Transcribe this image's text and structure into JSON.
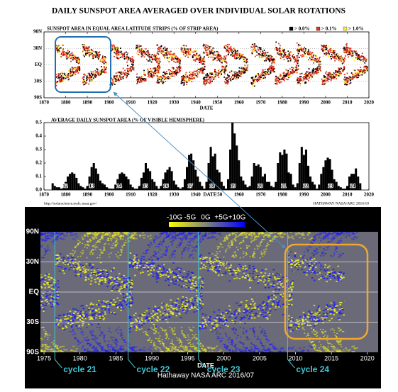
{
  "title": "DAILY SUNSPOT AREA AVERAGED OVER INDIVIDUAL SOLAR ROTATIONS",
  "chart_data": [
    {
      "type": "butterfly",
      "title": "SUNSPOT AREA IN EQUAL AREA LATITUDE STRIPS (% OF STRIP AREA)",
      "xlabel": "DATE",
      "legend": [
        {
          "label": "> 0.0%",
          "color": "#000000"
        },
        {
          "label": "> 0.1%",
          "color": "#e0301e"
        },
        {
          "label": "> 1.0%",
          "color": "#f5e93a"
        }
      ],
      "xlim": [
        1870,
        2020
      ],
      "xticks": [
        1870,
        1880,
        1890,
        1900,
        1910,
        1920,
        1930,
        1940,
        1950,
        1960,
        1970,
        1980,
        1990,
        2000,
        2010,
        2020
      ],
      "ylim": [
        -90,
        90
      ],
      "yscale": "sine",
      "yticks": [
        {
          "value": 90,
          "label": "90N"
        },
        {
          "value": 30,
          "label": "30N"
        },
        {
          "value": 0,
          "label": "EQ"
        },
        {
          "value": -30,
          "label": "30S"
        },
        {
          "value": -90,
          "label": "90S"
        }
      ],
      "grid": true
    },
    {
      "type": "bar",
      "title": "AVERAGE DAILY SUNSPOT AREA (% OF VISIBLE HEMISPHERE)",
      "xlabel": "DATE",
      "color": "#000000",
      "x": [
        1874,
        1875,
        1876,
        1877,
        1878,
        1879,
        1880,
        1881,
        1882,
        1883,
        1884,
        1885,
        1886,
        1887,
        1888,
        1889,
        1890,
        1891,
        1892,
        1893,
        1894,
        1895,
        1896,
        1897,
        1898,
        1899,
        1900,
        1901,
        1902,
        1903,
        1904,
        1905,
        1906,
        1907,
        1908,
        1909,
        1910,
        1911,
        1912,
        1913,
        1914,
        1915,
        1916,
        1917,
        1918,
        1919,
        1920,
        1921,
        1922,
        1923,
        1924,
        1925,
        1926,
        1927,
        1928,
        1929,
        1930,
        1931,
        1932,
        1933,
        1934,
        1935,
        1936,
        1937,
        1938,
        1939,
        1940,
        1941,
        1942,
        1943,
        1944,
        1945,
        1946,
        1947,
        1948,
        1949,
        1950,
        1951,
        1952,
        1953,
        1954,
        1955,
        1956,
        1957,
        1958,
        1959,
        1960,
        1961,
        1962,
        1963,
        1964,
        1965,
        1966,
        1967,
        1968,
        1969,
        1970,
        1971,
        1972,
        1973,
        1974,
        1975,
        1976,
        1977,
        1978,
        1979,
        1980,
        1981,
        1982,
        1983,
        1984,
        1985,
        1986,
        1987,
        1988,
        1989,
        1990,
        1991,
        1992,
        1993,
        1994,
        1995,
        1996,
        1997,
        1998,
        1999,
        2000,
        2001,
        2002,
        2003,
        2004,
        2005,
        2006,
        2007,
        2008,
        2009,
        2010,
        2011,
        2012,
        2013,
        2014,
        2015,
        2016
      ],
      "values": [
        0.05,
        0.03,
        0.02,
        0.02,
        0.01,
        0.02,
        0.06,
        0.1,
        0.12,
        0.13,
        0.12,
        0.09,
        0.05,
        0.03,
        0.02,
        0.01,
        0.03,
        0.1,
        0.17,
        0.2,
        0.16,
        0.12,
        0.07,
        0.05,
        0.04,
        0.02,
        0.01,
        0.01,
        0.01,
        0.04,
        0.08,
        0.12,
        0.13,
        0.12,
        0.1,
        0.08,
        0.04,
        0.02,
        0.01,
        0.01,
        0.03,
        0.09,
        0.13,
        0.2,
        0.16,
        0.14,
        0.08,
        0.06,
        0.03,
        0.01,
        0.03,
        0.08,
        0.13,
        0.15,
        0.17,
        0.14,
        0.07,
        0.04,
        0.02,
        0.01,
        0.02,
        0.08,
        0.17,
        0.26,
        0.27,
        0.22,
        0.15,
        0.1,
        0.06,
        0.03,
        0.01,
        0.06,
        0.2,
        0.32,
        0.25,
        0.27,
        0.15,
        0.13,
        0.06,
        0.03,
        0.01,
        0.08,
        0.3,
        0.5,
        0.42,
        0.33,
        0.22,
        0.1,
        0.07,
        0.04,
        0.02,
        0.03,
        0.1,
        0.2,
        0.18,
        0.19,
        0.17,
        0.1,
        0.12,
        0.06,
        0.06,
        0.03,
        0.02,
        0.06,
        0.2,
        0.28,
        0.26,
        0.3,
        0.27,
        0.13,
        0.12,
        0.04,
        0.02,
        0.05,
        0.2,
        0.32,
        0.26,
        0.3,
        0.18,
        0.1,
        0.06,
        0.04,
        0.01,
        0.04,
        0.12,
        0.17,
        0.22,
        0.24,
        0.23,
        0.15,
        0.08,
        0.06,
        0.03,
        0.02,
        0.01,
        0.01,
        0.03,
        0.1,
        0.12,
        0.12,
        0.16,
        0.1,
        0.05
      ],
      "cycle_numbers": [
        12,
        13,
        14,
        15,
        16,
        17,
        18,
        19,
        20,
        21,
        22,
        23,
        24
      ],
      "cycle_x": [
        1879.8,
        1892,
        1904.7,
        1916.8,
        1926.3,
        1937.5,
        1947.6,
        1957.4,
        1969.9,
        1980.7,
        1990.9,
        2002.3,
        2012.5
      ],
      "xlim": [
        1870,
        2020
      ],
      "xticks": [
        1870,
        1880,
        1890,
        1900,
        1910,
        1920,
        1930,
        1940,
        1950,
        1960,
        1970,
        1980,
        1990,
        2000,
        2010,
        2020
      ],
      "ylim": [
        0,
        0.5
      ],
      "yticks": [
        {
          "value": 0,
          "label": "0.0"
        },
        0.1,
        0.2,
        0.3,
        0.4,
        0.5
      ]
    },
    {
      "type": "magnetogram",
      "xlabel": "DATE",
      "credit": "Hathaway NASA ARC 2016/07",
      "colorbar": [
        "-10G",
        "-5G",
        "0G",
        "+5G",
        "+10G"
      ],
      "colors": {
        "negative": "#f0f020",
        "positive": "#1a1aff",
        "zero": "#6a6a78"
      },
      "xlim": [
        1974.5,
        2021.5
      ],
      "xticks": [
        1975,
        1980,
        1985,
        1990,
        1995,
        2000,
        2005,
        2010,
        2015,
        2020
      ],
      "ylim": [
        -90,
        90
      ],
      "yscale": "sine",
      "yticks": [
        {
          "value": 90,
          "label": "90N"
        },
        {
          "value": 30,
          "label": "30N"
        },
        {
          "value": 0,
          "label": "EQ"
        },
        {
          "value": -30,
          "label": "30S"
        },
        {
          "value": -90,
          "label": "90S"
        }
      ],
      "cycle_labels": [
        "cycle 21",
        "cycle 22",
        "cycle 23",
        "cycle 24"
      ],
      "cycle_starts": [
        1976.5,
        1986.7,
        1996.5,
        2008.9
      ]
    }
  ],
  "footer": {
    "url": "http://solarscience.msfc.nasa.gov/",
    "credit": "HATHAWAY NASA/ARC 2016/10"
  }
}
